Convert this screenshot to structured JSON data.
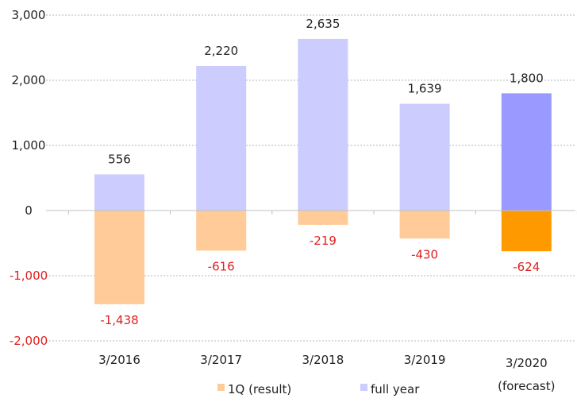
{
  "chart_data": {
    "type": "bar",
    "categories": [
      "3/2016",
      "3/2017",
      "3/2018",
      "3/2019",
      "3/2020"
    ],
    "category_sublabels": [
      "",
      "",
      "",
      "",
      "(forecast)"
    ],
    "series": [
      {
        "name": "1Q (result)",
        "values": [
          -1438,
          -616,
          -219,
          -430,
          -624
        ],
        "labels": [
          "-1,438",
          "-616",
          "-219",
          "-430",
          "-624"
        ],
        "color": "#ffcc99",
        "highlight_color": "#ff9900"
      },
      {
        "name": "full year",
        "values": [
          556,
          2220,
          2635,
          1639,
          1800
        ],
        "labels": [
          "556",
          "2,220",
          "2,635",
          "1,639",
          "1,800"
        ],
        "color": "#ccccff",
        "highlight_color": "#9999ff"
      }
    ],
    "highlight_category_index": 4,
    "ylim": [
      -2000,
      3000
    ],
    "yticks": [
      3000,
      2000,
      1000,
      0,
      -1000,
      -2000
    ],
    "ytick_labels": [
      "3,000",
      "2,000",
      "1,000",
      "0",
      "-1,000",
      "-2,000"
    ],
    "negative_label_color": "#e02020",
    "grid": true,
    "legend_position": "bottom",
    "title": "",
    "xlabel": "",
    "ylabel": ""
  }
}
